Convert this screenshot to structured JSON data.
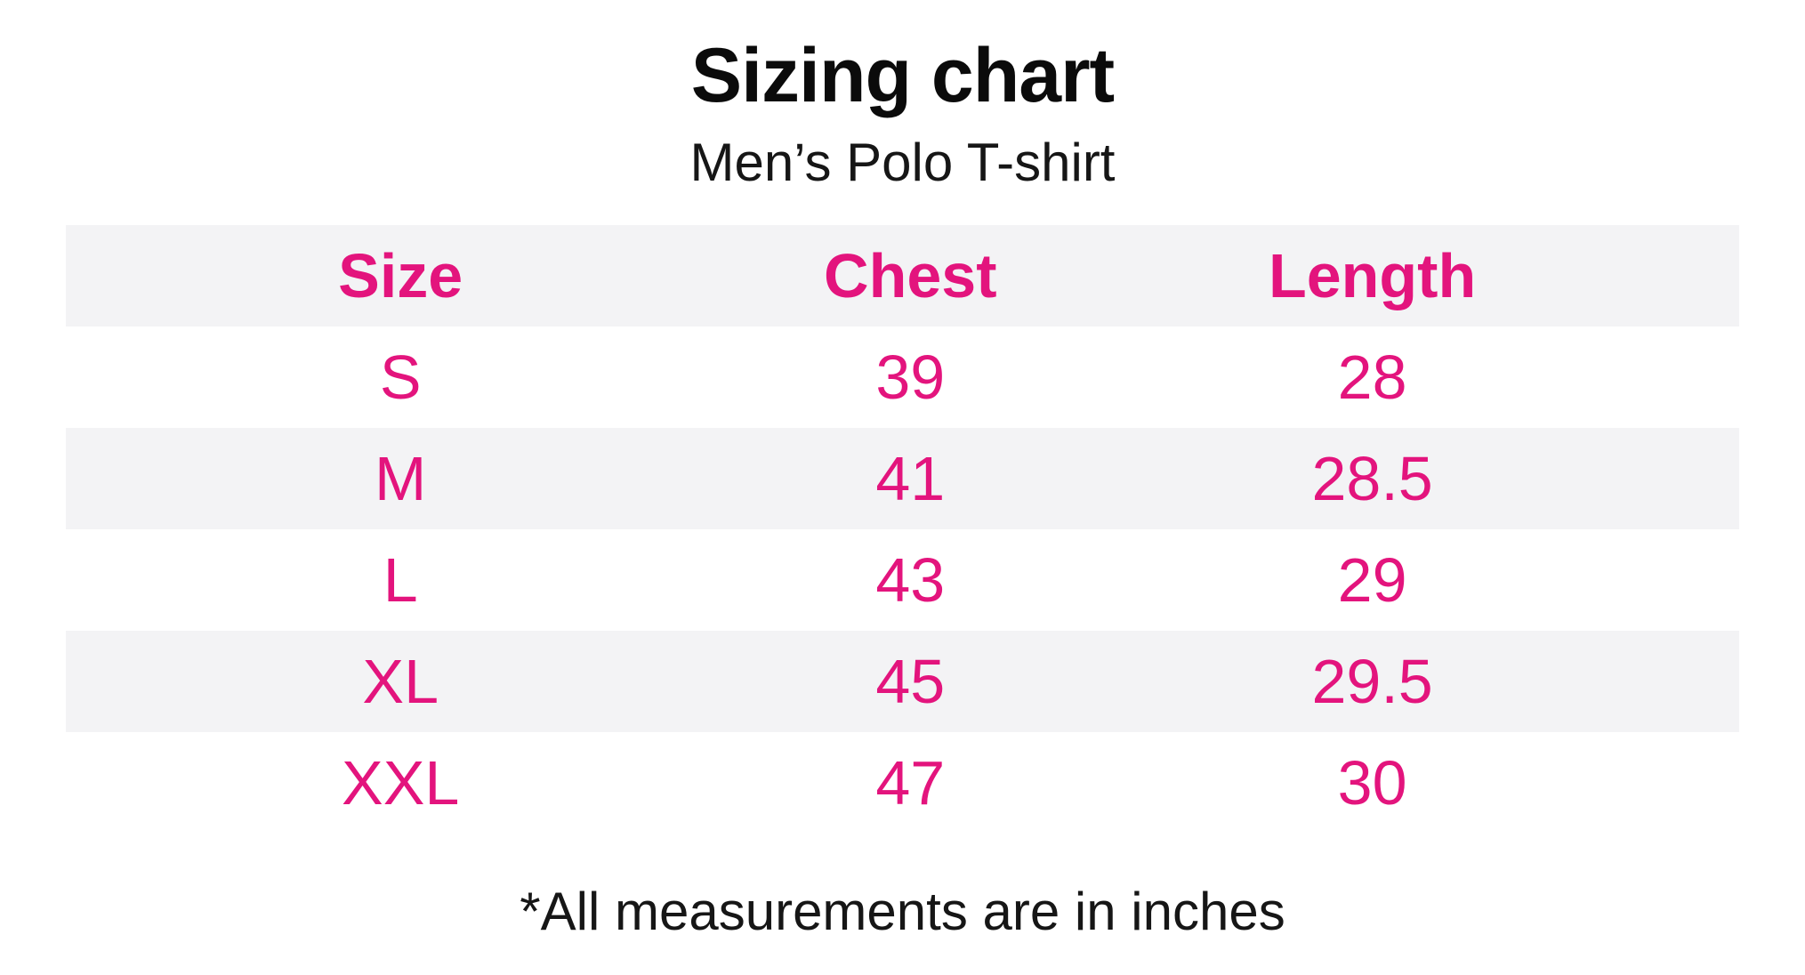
{
  "page": {
    "title": "Sizing chart",
    "subtitle": "Men’s Polo T-shirt",
    "footnote": "*All measurements are in inches"
  },
  "table": {
    "headers": {
      "size": "Size",
      "chest": "Chest",
      "length": "Length"
    },
    "rows": [
      {
        "size": "S",
        "chest": "39",
        "length": "28"
      },
      {
        "size": "M",
        "chest": "41",
        "length": "28.5"
      },
      {
        "size": "L",
        "chest": "43",
        "length": "29"
      },
      {
        "size": "XL",
        "chest": "45",
        "length": "29.5"
      },
      {
        "size": "XXL",
        "chest": "47",
        "length": "30"
      }
    ]
  },
  "colors": {
    "accent_pink": "#e3147d",
    "row_stripe": "#f3f3f5",
    "text_black": "#161616",
    "background": "#ffffff"
  },
  "chart_data": {
    "type": "table",
    "title": "Sizing chart",
    "subtitle": "Men’s Polo T-shirt",
    "columns": [
      "Size",
      "Chest",
      "Length"
    ],
    "rows": [
      [
        "S",
        39,
        28
      ],
      [
        "M",
        41,
        28.5
      ],
      [
        "L",
        43,
        29
      ],
      [
        "XL",
        45,
        29.5
      ],
      [
        "XXL",
        47,
        30
      ]
    ],
    "note": "*All measurements are in inches",
    "layout": {
      "striped_rows": true,
      "header_background": "#f3f3f5",
      "value_color": "#e3147d"
    }
  }
}
